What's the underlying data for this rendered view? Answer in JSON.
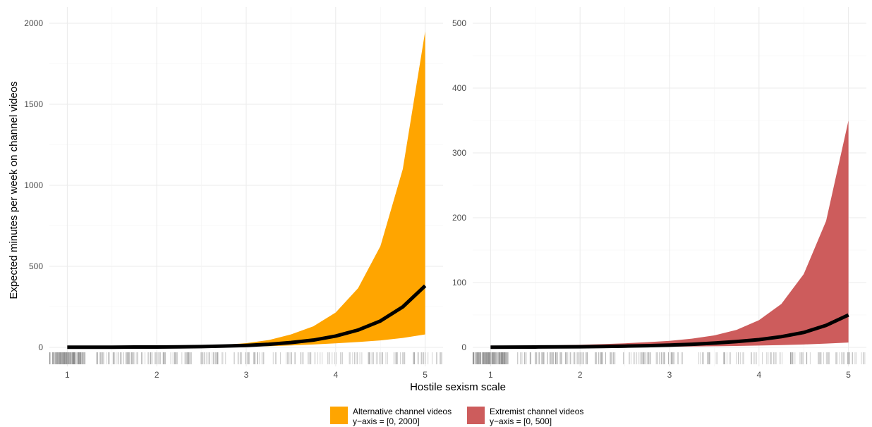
{
  "chart_data": [
    {
      "type": "area",
      "panel": "left",
      "ylabel": "Expected minutes per week on channel videos",
      "xlim": [
        0.8,
        5.2
      ],
      "ylim": [
        0,
        2000
      ],
      "x_ticks": [
        "1",
        "2",
        "3",
        "4",
        "5"
      ],
      "y_ticks": [
        "0",
        "500",
        "1000",
        "1500",
        "2000"
      ],
      "grid": true,
      "fill_color": "#FFA500",
      "line_color": "#000000",
      "series": [
        {
          "name": "Alternative channel videos",
          "x": [
            1,
            1.25,
            1.5,
            1.75,
            2,
            2.25,
            2.5,
            2.75,
            3,
            3.25,
            3.5,
            3.75,
            4,
            4.25,
            4.5,
            4.75,
            5
          ],
          "mean": [
            1,
            1,
            1,
            2,
            2,
            3,
            5,
            8,
            12,
            19,
            30,
            45,
            70,
            107,
            163,
            250,
            380
          ],
          "lower": [
            0,
            0,
            0,
            0,
            0,
            0,
            1,
            2,
            4,
            7,
            12,
            18,
            25,
            33,
            43,
            58,
            80
          ],
          "upper": [
            2,
            3,
            3,
            4,
            5,
            7,
            10,
            16,
            26,
            45,
            80,
            130,
            215,
            365,
            625,
            1100,
            1950
          ]
        }
      ],
      "rug": "alternative"
    },
    {
      "type": "area",
      "panel": "right",
      "xlim": [
        0.8,
        5.2
      ],
      "ylim": [
        0,
        500
      ],
      "x_ticks": [
        "1",
        "2",
        "3",
        "4",
        "5"
      ],
      "y_ticks": [
        "0",
        "100",
        "200",
        "300",
        "400",
        "500"
      ],
      "grid": true,
      "fill_color": "#CD5C5C",
      "line_color": "#000000",
      "series": [
        {
          "name": "Extremist channel videos",
          "x": [
            1,
            1.25,
            1.5,
            1.75,
            2,
            2.25,
            2.5,
            2.75,
            3,
            3.25,
            3.5,
            3.75,
            4,
            4.25,
            4.5,
            4.75,
            5
          ],
          "mean": [
            0.3,
            0.4,
            0.6,
            0.8,
            1,
            1.4,
            1.9,
            2.6,
            3.5,
            4.8,
            6.6,
            9,
            12,
            16.5,
            23,
            34,
            50
          ],
          "lower": [
            0,
            0,
            0,
            0,
            0.2,
            0.3,
            0.5,
            0.7,
            1,
            1.3,
            1.7,
            2.2,
            2.8,
            3.5,
            4.5,
            5.8,
            7.5
          ],
          "upper": [
            1.5,
            2,
            2.5,
            3.3,
            4,
            5,
            6.3,
            8,
            10,
            13.5,
            18.5,
            27,
            42,
            67,
            113,
            195,
            350
          ]
        }
      ],
      "rug": "extremist"
    }
  ],
  "shared_xlabel": "Hostile sexism scale",
  "legend": {
    "placement": "bottom",
    "items": [
      {
        "label": "Alternative channel videos",
        "sublabel": "y−axis = [0, 2000]",
        "color": "#FFA500"
      },
      {
        "label": "Extremist channel videos",
        "sublabel": "y−axis = [0, 500]",
        "color": "#CD5C5C"
      }
    ]
  }
}
